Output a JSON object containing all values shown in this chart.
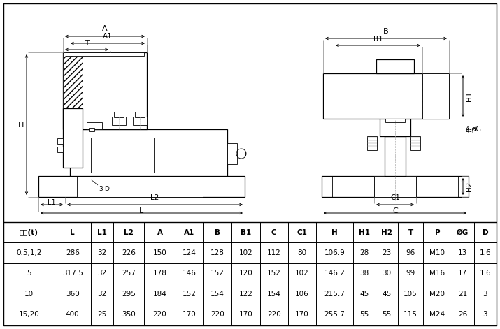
{
  "background_color": "#ffffff",
  "table_headers": [
    "容量(t)",
    "L",
    "L1",
    "L2",
    "A",
    "A1",
    "B",
    "B1",
    "C",
    "C1",
    "H",
    "H1",
    "H2",
    "T",
    "P",
    "ØG",
    "D"
  ],
  "table_rows": [
    [
      "0.5,1,2",
      "286",
      "32",
      "226",
      "150",
      "124",
      "128",
      "102",
      "112",
      "80",
      "106.9",
      "28",
      "23",
      "96",
      "M10",
      "13",
      "1.6"
    ],
    [
      "5",
      "317.5",
      "32",
      "257",
      "178",
      "146",
      "152",
      "120",
      "152",
      "102",
      "146.2",
      "38",
      "30",
      "99",
      "M16",
      "17",
      "1.6"
    ],
    [
      "10",
      "360",
      "32",
      "295",
      "184",
      "152",
      "154",
      "122",
      "154",
      "106",
      "215.7",
      "45",
      "45",
      "105",
      "M20",
      "21",
      "3"
    ],
    [
      "15,20",
      "400",
      "25",
      "350",
      "220",
      "170",
      "220",
      "170",
      "220",
      "170",
      "255.7",
      "55",
      "55",
      "115",
      "M24",
      "26",
      "3"
    ]
  ],
  "col_widths_rel": [
    1.8,
    1.3,
    0.8,
    1.1,
    1.1,
    1.0,
    1.0,
    1.0,
    1.0,
    1.0,
    1.3,
    0.8,
    0.8,
    0.9,
    1.0,
    0.8,
    0.8
  ],
  "line_color": "#000000"
}
